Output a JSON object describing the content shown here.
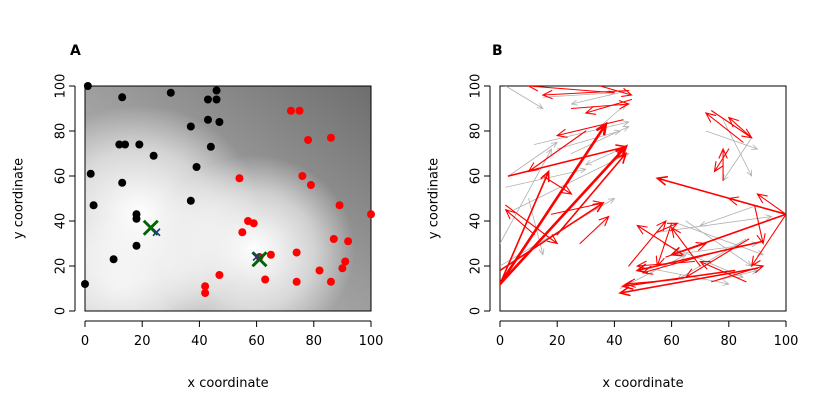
{
  "chart_data": [
    {
      "panel_label": "A",
      "type": "scatter",
      "xlabel": "x coordinate",
      "ylabel": "y coordinate",
      "xlim": [
        0,
        100
      ],
      "ylim": [
        0,
        100
      ],
      "xticks": [
        "0",
        "20",
        "40",
        "60",
        "80",
        "100"
      ],
      "yticks": [
        "0",
        "20",
        "40",
        "60",
        "80",
        "100"
      ],
      "background": "grayscale-density",
      "series": [
        {
          "color": "#000000",
          "points": [
            [
              1,
              100
            ],
            [
              30,
              97
            ],
            [
              46,
              98
            ],
            [
              13,
              95
            ],
            [
              43,
              94
            ],
            [
              46,
              94
            ],
            [
              37,
              82
            ],
            [
              43,
              85
            ],
            [
              47,
              84
            ],
            [
              12,
              74
            ],
            [
              14,
              74
            ],
            [
              19,
              74
            ],
            [
              24,
              69
            ],
            [
              44,
              73
            ],
            [
              2,
              61
            ],
            [
              13,
              57
            ],
            [
              39,
              64
            ],
            [
              3,
              47
            ],
            [
              18,
              43
            ],
            [
              18,
              41
            ],
            [
              37,
              49
            ],
            [
              18,
              29
            ],
            [
              10,
              23
            ],
            [
              0,
              12
            ]
          ]
        },
        {
          "color": "#ff0000",
          "points": [
            [
              72,
              89
            ],
            [
              75,
              89
            ],
            [
              78,
              76
            ],
            [
              86,
              77
            ],
            [
              76,
              60
            ],
            [
              79,
              56
            ],
            [
              54,
              59
            ],
            [
              57,
              40
            ],
            [
              59,
              39
            ],
            [
              55,
              35
            ],
            [
              100,
              43
            ],
            [
              89,
              47
            ],
            [
              87,
              32
            ],
            [
              92,
              31
            ],
            [
              61,
              24
            ],
            [
              65,
              25
            ],
            [
              74,
              26
            ],
            [
              91,
              22
            ],
            [
              90,
              19
            ],
            [
              82,
              18
            ],
            [
              86,
              13
            ],
            [
              74,
              13
            ],
            [
              63,
              14
            ],
            [
              47,
              16
            ],
            [
              42,
              11
            ],
            [
              42,
              8
            ]
          ]
        }
      ],
      "markers": [
        {
          "shape": "x",
          "color": "#006400",
          "size": "large",
          "points": [
            [
              23,
              37
            ],
            [
              61,
              23
            ]
          ]
        },
        {
          "shape": "x",
          "color": "#1e3a8a",
          "size": "small",
          "points": [
            [
              25,
              35
            ],
            [
              60,
              24
            ]
          ]
        }
      ]
    },
    {
      "panel_label": "B",
      "type": "vector-field",
      "xlabel": "x coordinate",
      "ylabel": "y coordinate",
      "xlim": [
        0,
        100
      ],
      "ylim": [
        0,
        100
      ],
      "xticks": [
        "0",
        "20",
        "40",
        "60",
        "80",
        "100"
      ],
      "yticks": [
        "0",
        "20",
        "40",
        "60",
        "80",
        "100"
      ],
      "series": [
        {
          "color": "#b0b0b0",
          "arrows": [
            [
              2,
              100,
              15,
              90
            ],
            [
              15,
              95,
              40,
              97
            ],
            [
              45,
              98,
              25,
              92
            ],
            [
              3,
              60,
              20,
              75
            ],
            [
              12,
              74,
              45,
              84
            ],
            [
              20,
              72,
              42,
              80
            ],
            [
              5,
              45,
              45,
              70
            ],
            [
              0,
              20,
              40,
              50
            ],
            [
              0,
              30,
              18,
              72
            ],
            [
              2,
              55,
              30,
              63
            ],
            [
              25,
              70,
              45,
              82
            ],
            [
              35,
              82,
              44,
              92
            ],
            [
              10,
              50,
              15,
              25
            ],
            [
              44,
              73,
              30,
              65
            ],
            [
              74,
              89,
              88,
              77
            ],
            [
              78,
              85,
              88,
              60
            ],
            [
              88,
              77,
              78,
              58
            ],
            [
              72,
              80,
              90,
              72
            ],
            [
              55,
              35,
              95,
              42
            ],
            [
              65,
              40,
              88,
              20
            ],
            [
              60,
              25,
              90,
              30
            ],
            [
              48,
              20,
              80,
              12
            ],
            [
              42,
              10,
              65,
              25
            ],
            [
              74,
              13,
              90,
              18
            ],
            [
              86,
              32,
              62,
              14
            ],
            [
              90,
              47,
              70,
              38
            ],
            [
              62,
              39,
              92,
              25
            ],
            [
              57,
              30,
              85,
              15
            ]
          ]
        },
        {
          "color": "#ff0000",
          "arrows": [
            [
              0,
              12,
              37,
              83
            ],
            [
              0,
              12,
              44,
              73
            ],
            [
              0,
              18,
              36,
              48
            ],
            [
              0,
              12,
              17,
              62
            ],
            [
              20,
              34,
              44,
              70
            ],
            [
              28,
              30,
              38,
              42
            ],
            [
              3,
              60,
              44,
              73
            ],
            [
              35,
              100,
              46,
              96
            ],
            [
              45,
              98,
              15,
              96
            ],
            [
              40,
              97,
              10,
              100
            ],
            [
              46,
              94,
              30,
              88
            ],
            [
              43,
              85,
              20,
              78
            ],
            [
              30,
              80,
              10,
              62
            ],
            [
              15,
              60,
              25,
              52
            ],
            [
              18,
              43,
              36,
              48
            ],
            [
              2,
              47,
              20,
              30
            ],
            [
              12,
              34,
              2,
              45
            ],
            [
              25,
              90,
              45,
              92
            ],
            [
              74,
              89,
              88,
              77
            ],
            [
              88,
              77,
              80,
              86
            ],
            [
              85,
              75,
              72,
              88
            ],
            [
              78,
              58,
              78,
              72
            ],
            [
              80,
              72,
              75,
              62
            ],
            [
              100,
              43,
              80,
              50
            ],
            [
              100,
              43,
              90,
              52
            ],
            [
              100,
              43,
              55,
              59
            ],
            [
              100,
              43,
              88,
              20
            ],
            [
              90,
              19,
              42,
              8
            ],
            [
              92,
              31,
              48,
              18
            ],
            [
              87,
              32,
              65,
              15
            ],
            [
              82,
              18,
              43,
              11
            ],
            [
              100,
              43,
              60,
              25
            ],
            [
              64,
              25,
              48,
              38
            ],
            [
              55,
              35,
              62,
              39
            ],
            [
              60,
              39,
              55,
              20
            ],
            [
              89,
              47,
              92,
              30
            ],
            [
              62,
              14,
              44,
              12
            ],
            [
              75,
              26,
              50,
              17
            ],
            [
              70,
              20,
              60,
              37
            ],
            [
              74,
              13,
              92,
              20
            ],
            [
              86,
              13,
              70,
              22
            ],
            [
              45,
              20,
              58,
              40
            ],
            [
              58,
              24,
              72,
              30
            ],
            [
              68,
              22,
              48,
              20
            ]
          ]
        }
      ]
    }
  ]
}
